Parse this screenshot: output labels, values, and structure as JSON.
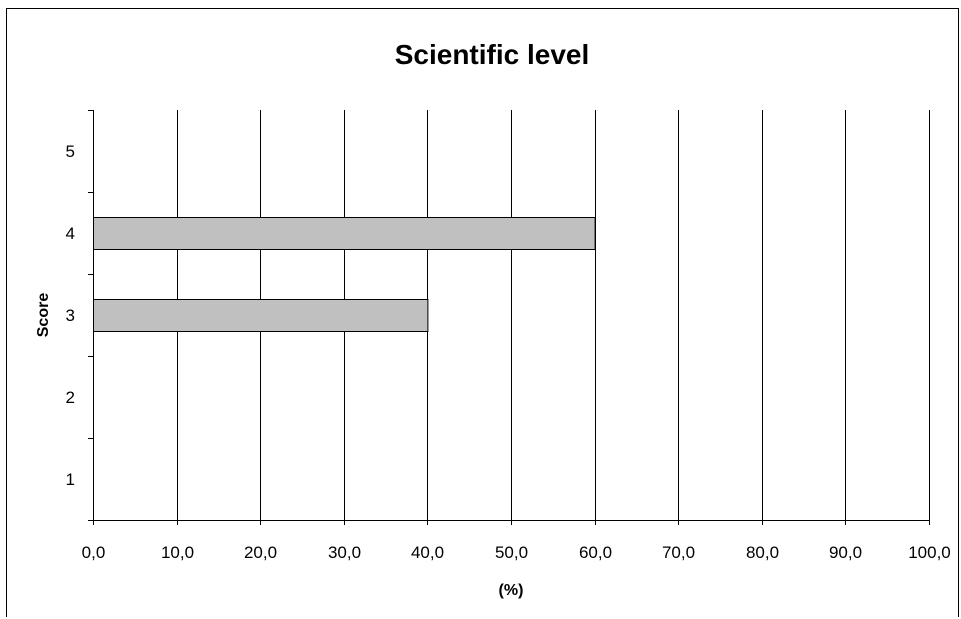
{
  "chart_data": {
    "type": "bar",
    "orientation": "horizontal",
    "title": "Scientific level",
    "xlabel": "(%)",
    "ylabel": "Score",
    "categories": [
      "1",
      "2",
      "3",
      "4",
      "5"
    ],
    "values": [
      0,
      0,
      40.0,
      60.0,
      0
    ],
    "xlim": [
      0,
      100
    ],
    "xticks": [
      0,
      10,
      20,
      30,
      40,
      50,
      60,
      70,
      80,
      90,
      100
    ],
    "xtick_labels": [
      "0,0",
      "10,0",
      "20,0",
      "30,0",
      "40,0",
      "50,0",
      "60,0",
      "70,0",
      "80,0",
      "90,0",
      "100,0"
    ],
    "grid": "vertical",
    "legend": "none",
    "bar_color": "#c0c0c0",
    "bar_edge_color": "#000000"
  }
}
